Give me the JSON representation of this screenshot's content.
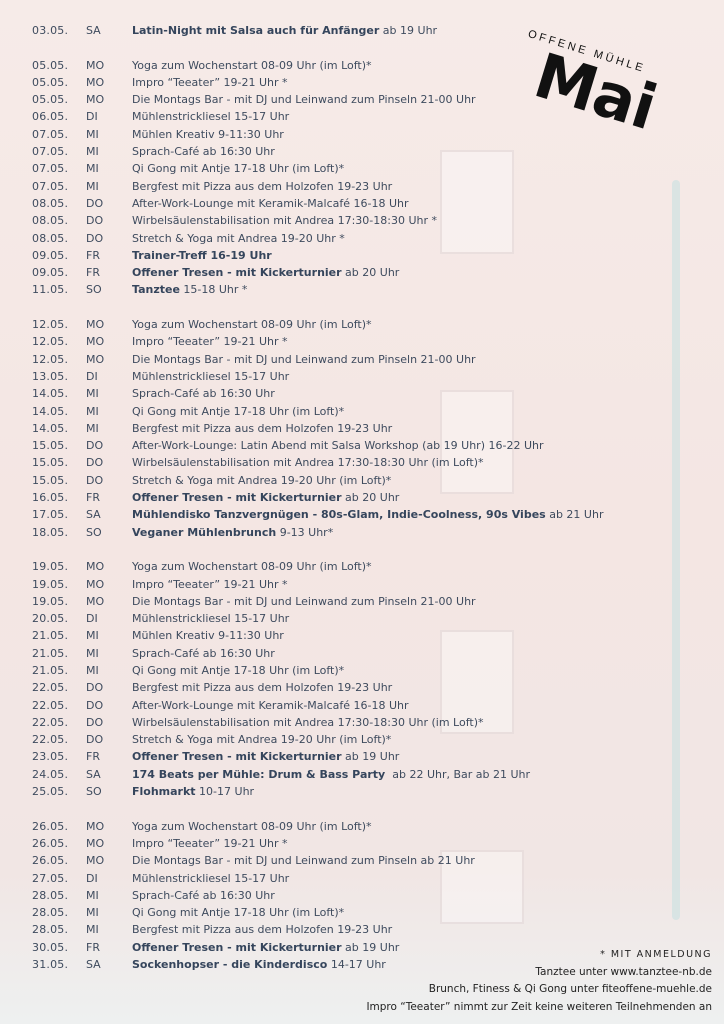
{
  "header": {
    "subtitle": "OFFENE MÜHLE",
    "title": "Mai"
  },
  "groups": [
    {
      "rows": [
        {
          "date": "03.05.",
          "day": "SA",
          "bold": "Latin-Night mit Salsa auch für Anfänger",
          "text": " ab 19 Uhr"
        }
      ]
    },
    {
      "rows": [
        {
          "date": "05.05.",
          "day": "MO",
          "bold": "",
          "text": "Yoga zum Wochenstart 08-09 Uhr (im Loft)*"
        },
        {
          "date": "05.05.",
          "day": "MO",
          "bold": "",
          "text": "Impro “Teeater” 19-21 Uhr *"
        },
        {
          "date": "05.05.",
          "day": "MO",
          "bold": "",
          "text": "Die Montags Bar - mit DJ und Leinwand zum Pinseln 21-00 Uhr"
        },
        {
          "date": "06.05.",
          "day": "DI",
          "bold": "",
          "text": "Mühlenstrickliesel 15-17 Uhr"
        },
        {
          "date": "07.05.",
          "day": "MI",
          "bold": "",
          "text": "Mühlen Kreativ 9-11:30 Uhr"
        },
        {
          "date": "07.05.",
          "day": "MI",
          "bold": "",
          "text": "Sprach-Café ab 16:30 Uhr"
        },
        {
          "date": "07.05.",
          "day": "MI",
          "bold": "",
          "text": "Qi Gong mit Antje 17-18 Uhr (im Loft)*"
        },
        {
          "date": "07.05.",
          "day": "MI",
          "bold": "",
          "text": "Bergfest mit Pizza aus dem Holzofen 19-23 Uhr"
        },
        {
          "date": "08.05.",
          "day": "DO",
          "bold": "",
          "text": "After-Work-Lounge mit Keramik-Malcafé 16-18 Uhr"
        },
        {
          "date": "08.05.",
          "day": "DO",
          "bold": "",
          "text": "Wirbelsäulenstabilisation mit Andrea 17:30-18:30 Uhr *"
        },
        {
          "date": "08.05.",
          "day": "DO",
          "bold": "",
          "text": "Stretch & Yoga mit Andrea 19-20 Uhr *"
        },
        {
          "date": "09.05.",
          "day": "FR",
          "bold": "Trainer-Treff 16-19 Uhr",
          "text": ""
        },
        {
          "date": "09.05.",
          "day": "FR",
          "bold": "Offener Tresen - mit Kickerturnier",
          "text": " ab 20 Uhr"
        },
        {
          "date": "11.05.",
          "day": "SO",
          "bold": "Tanztee",
          "text": " 15-18 Uhr *"
        }
      ]
    },
    {
      "rows": [
        {
          "date": "12.05.",
          "day": "MO",
          "bold": "",
          "text": "Yoga zum Wochenstart 08-09 Uhr (im Loft)*"
        },
        {
          "date": "12.05.",
          "day": "MO",
          "bold": "",
          "text": "Impro “Teeater” 19-21 Uhr *"
        },
        {
          "date": "12.05.",
          "day": "MO",
          "bold": "",
          "text": "Die Montags Bar - mit DJ und Leinwand zum Pinseln 21-00 Uhr"
        },
        {
          "date": "13.05.",
          "day": "DI",
          "bold": "",
          "text": "Mühlenstrickliesel 15-17 Uhr"
        },
        {
          "date": "14.05.",
          "day": "MI",
          "bold": "",
          "text": "Sprach-Café ab 16:30 Uhr"
        },
        {
          "date": "14.05.",
          "day": "MI",
          "bold": "",
          "text": "Qi Gong mit Antje 17-18 Uhr (im Loft)*"
        },
        {
          "date": "14.05.",
          "day": "MI",
          "bold": "",
          "text": "Bergfest mit Pizza aus dem Holzofen 19-23 Uhr"
        },
        {
          "date": "15.05.",
          "day": "DO",
          "bold": "",
          "text": "After-Work-Lounge: Latin Abend mit Salsa Workshop (ab 19 Uhr) 16-22 Uhr"
        },
        {
          "date": "15.05.",
          "day": "DO",
          "bold": "",
          "text": "Wirbelsäulenstabilisation mit Andrea 17:30-18:30 Uhr (im Loft)*"
        },
        {
          "date": "15.05.",
          "day": "DO",
          "bold": "",
          "text": "Stretch & Yoga mit Andrea 19-20 Uhr (im Loft)*"
        },
        {
          "date": "16.05.",
          "day": "FR",
          "bold": "Offener Tresen - mit Kickerturnier",
          "text": " ab 20 Uhr"
        },
        {
          "date": "17.05.",
          "day": "SA",
          "bold": "Mühlendisko Tanzvergnügen - 80s-Glam, Indie-Coolness, 90s Vibes",
          "text": " ab 21 Uhr"
        },
        {
          "date": "18.05.",
          "day": "SO",
          "bold": "Veganer Mühlenbrunch",
          "text": " 9-13 Uhr*"
        }
      ]
    },
    {
      "rows": [
        {
          "date": "19.05.",
          "day": "MO",
          "bold": "",
          "text": "Yoga zum Wochenstart 08-09 Uhr (im Loft)*"
        },
        {
          "date": "19.05.",
          "day": "MO",
          "bold": "",
          "text": "Impro “Teeater” 19-21 Uhr *"
        },
        {
          "date": "19.05.",
          "day": "MO",
          "bold": "",
          "text": "Die Montags Bar - mit DJ und Leinwand zum Pinseln 21-00 Uhr"
        },
        {
          "date": "20.05.",
          "day": "DI",
          "bold": "",
          "text": "Mühlenstrickliesel 15-17 Uhr"
        },
        {
          "date": "21.05.",
          "day": "MI",
          "bold": "",
          "text": "Mühlen Kreativ 9-11:30 Uhr"
        },
        {
          "date": "21.05.",
          "day": "MI",
          "bold": "",
          "text": "Sprach-Café ab 16:30 Uhr"
        },
        {
          "date": "21.05.",
          "day": "MI",
          "bold": "",
          "text": "Qi Gong mit Antje 17-18 Uhr (im Loft)*"
        },
        {
          "date": "22.05.",
          "day": "DO",
          "bold": "",
          "text": "Bergfest mit Pizza aus dem Holzofen 19-23 Uhr"
        },
        {
          "date": "22.05.",
          "day": "DO",
          "bold": "",
          "text": "After-Work-Lounge mit Keramik-Malcafé 16-18 Uhr"
        },
        {
          "date": "22.05.",
          "day": "DO",
          "bold": "",
          "text": "Wirbelsäulenstabilisation mit Andrea 17:30-18:30 Uhr (im Loft)*"
        },
        {
          "date": "22.05.",
          "day": "DO",
          "bold": "",
          "text": "Stretch & Yoga mit Andrea 19-20 Uhr (im Loft)*"
        },
        {
          "date": "23.05.",
          "day": "FR",
          "bold": "Offener Tresen - mit Kickerturnier",
          "text": " ab 19 Uhr"
        },
        {
          "date": "24.05.",
          "day": "SA",
          "bold": "174 Beats per Mühle: Drum & Bass Party",
          "text": "  ab 22 Uhr, Bar ab 21 Uhr"
        },
        {
          "date": "25.05.",
          "day": "SO",
          "bold": "Flohmarkt",
          "text": " 10-17 Uhr"
        }
      ]
    },
    {
      "rows": [
        {
          "date": "26.05.",
          "day": "MO",
          "bold": "",
          "text": "Yoga zum Wochenstart 08-09 Uhr (im Loft)*"
        },
        {
          "date": "26.05.",
          "day": "MO",
          "bold": "",
          "text": "Impro “Teeater” 19-21 Uhr *"
        },
        {
          "date": "26.05.",
          "day": "MO",
          "bold": "",
          "text": "Die Montags Bar - mit DJ und Leinwand zum Pinseln ab 21 Uhr"
        },
        {
          "date": "27.05.",
          "day": "DI",
          "bold": "",
          "text": "Mühlenstrickliesel 15-17 Uhr"
        },
        {
          "date": "28.05.",
          "day": "MI",
          "bold": "",
          "text": "Sprach-Café ab 16:30 Uhr"
        },
        {
          "date": "28.05.",
          "day": "MI",
          "bold": "",
          "text": "Qi Gong mit Antje 17-18 Uhr (im Loft)*"
        },
        {
          "date": "28.05.",
          "day": "MI",
          "bold": "",
          "text": "Bergfest mit Pizza aus dem Holzofen 19-23 Uhr"
        },
        {
          "date": "30.05.",
          "day": "FR",
          "bold": "Offener Tresen - mit Kickerturnier",
          "text": " ab 19 Uhr"
        },
        {
          "date": "31.05.",
          "day": "SA",
          "bold": "Sockenhopser - die Kinderdisco",
          "text": " 14-17 Uhr"
        }
      ]
    }
  ],
  "footer": {
    "note": "* MIT ANMELDUNG",
    "lines": [
      "Tanztee unter www.tanztee-nb.de",
      "Brunch, Ftiness & Qi Gong unter fiteoffene-muehle.de",
      "Impro “Teeater” nimmt zur Zeit keine weiteren Teilnehmenden an"
    ]
  }
}
